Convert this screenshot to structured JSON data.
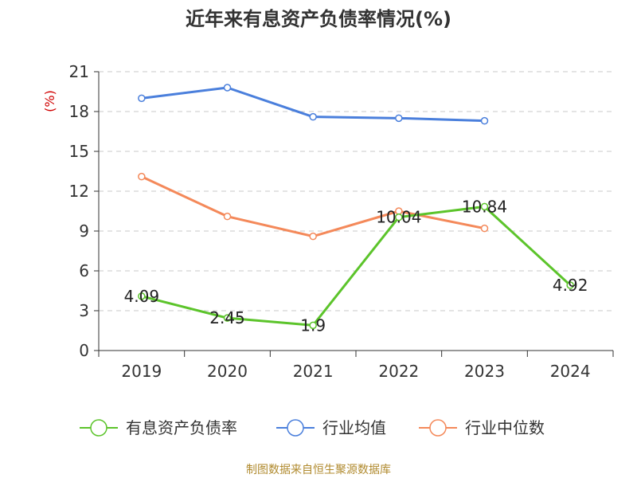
{
  "chart_data": {
    "type": "line",
    "title": "近年来有息资产负债率情况(%)",
    "ylabel": "(%)",
    "xlabel": "",
    "categories": [
      "2019",
      "2020",
      "2021",
      "2022",
      "2023",
      "2024"
    ],
    "ylim": [
      0,
      21
    ],
    "yticks": [
      0,
      3,
      6,
      9,
      12,
      15,
      18,
      21
    ],
    "grid": true,
    "legend_position": "bottom",
    "series": [
      {
        "name": "有息资产负债率",
        "color": "#5cc42b",
        "values": [
          4.09,
          2.45,
          1.9,
          10.04,
          10.84,
          4.92
        ],
        "labels": [
          "4.09",
          "2.45",
          "1.9",
          "10.04",
          "10.84",
          "4.92"
        ]
      },
      {
        "name": "行业均值",
        "color": "#4a7fdc",
        "values": [
          19.0,
          19.8,
          17.6,
          17.5,
          17.3,
          null
        ]
      },
      {
        "name": "行业中位数",
        "color": "#f4895a",
        "values": [
          13.1,
          10.1,
          8.6,
          10.5,
          9.2,
          null
        ]
      }
    ]
  },
  "source_text": "制图数据来自恒生聚源数据库"
}
